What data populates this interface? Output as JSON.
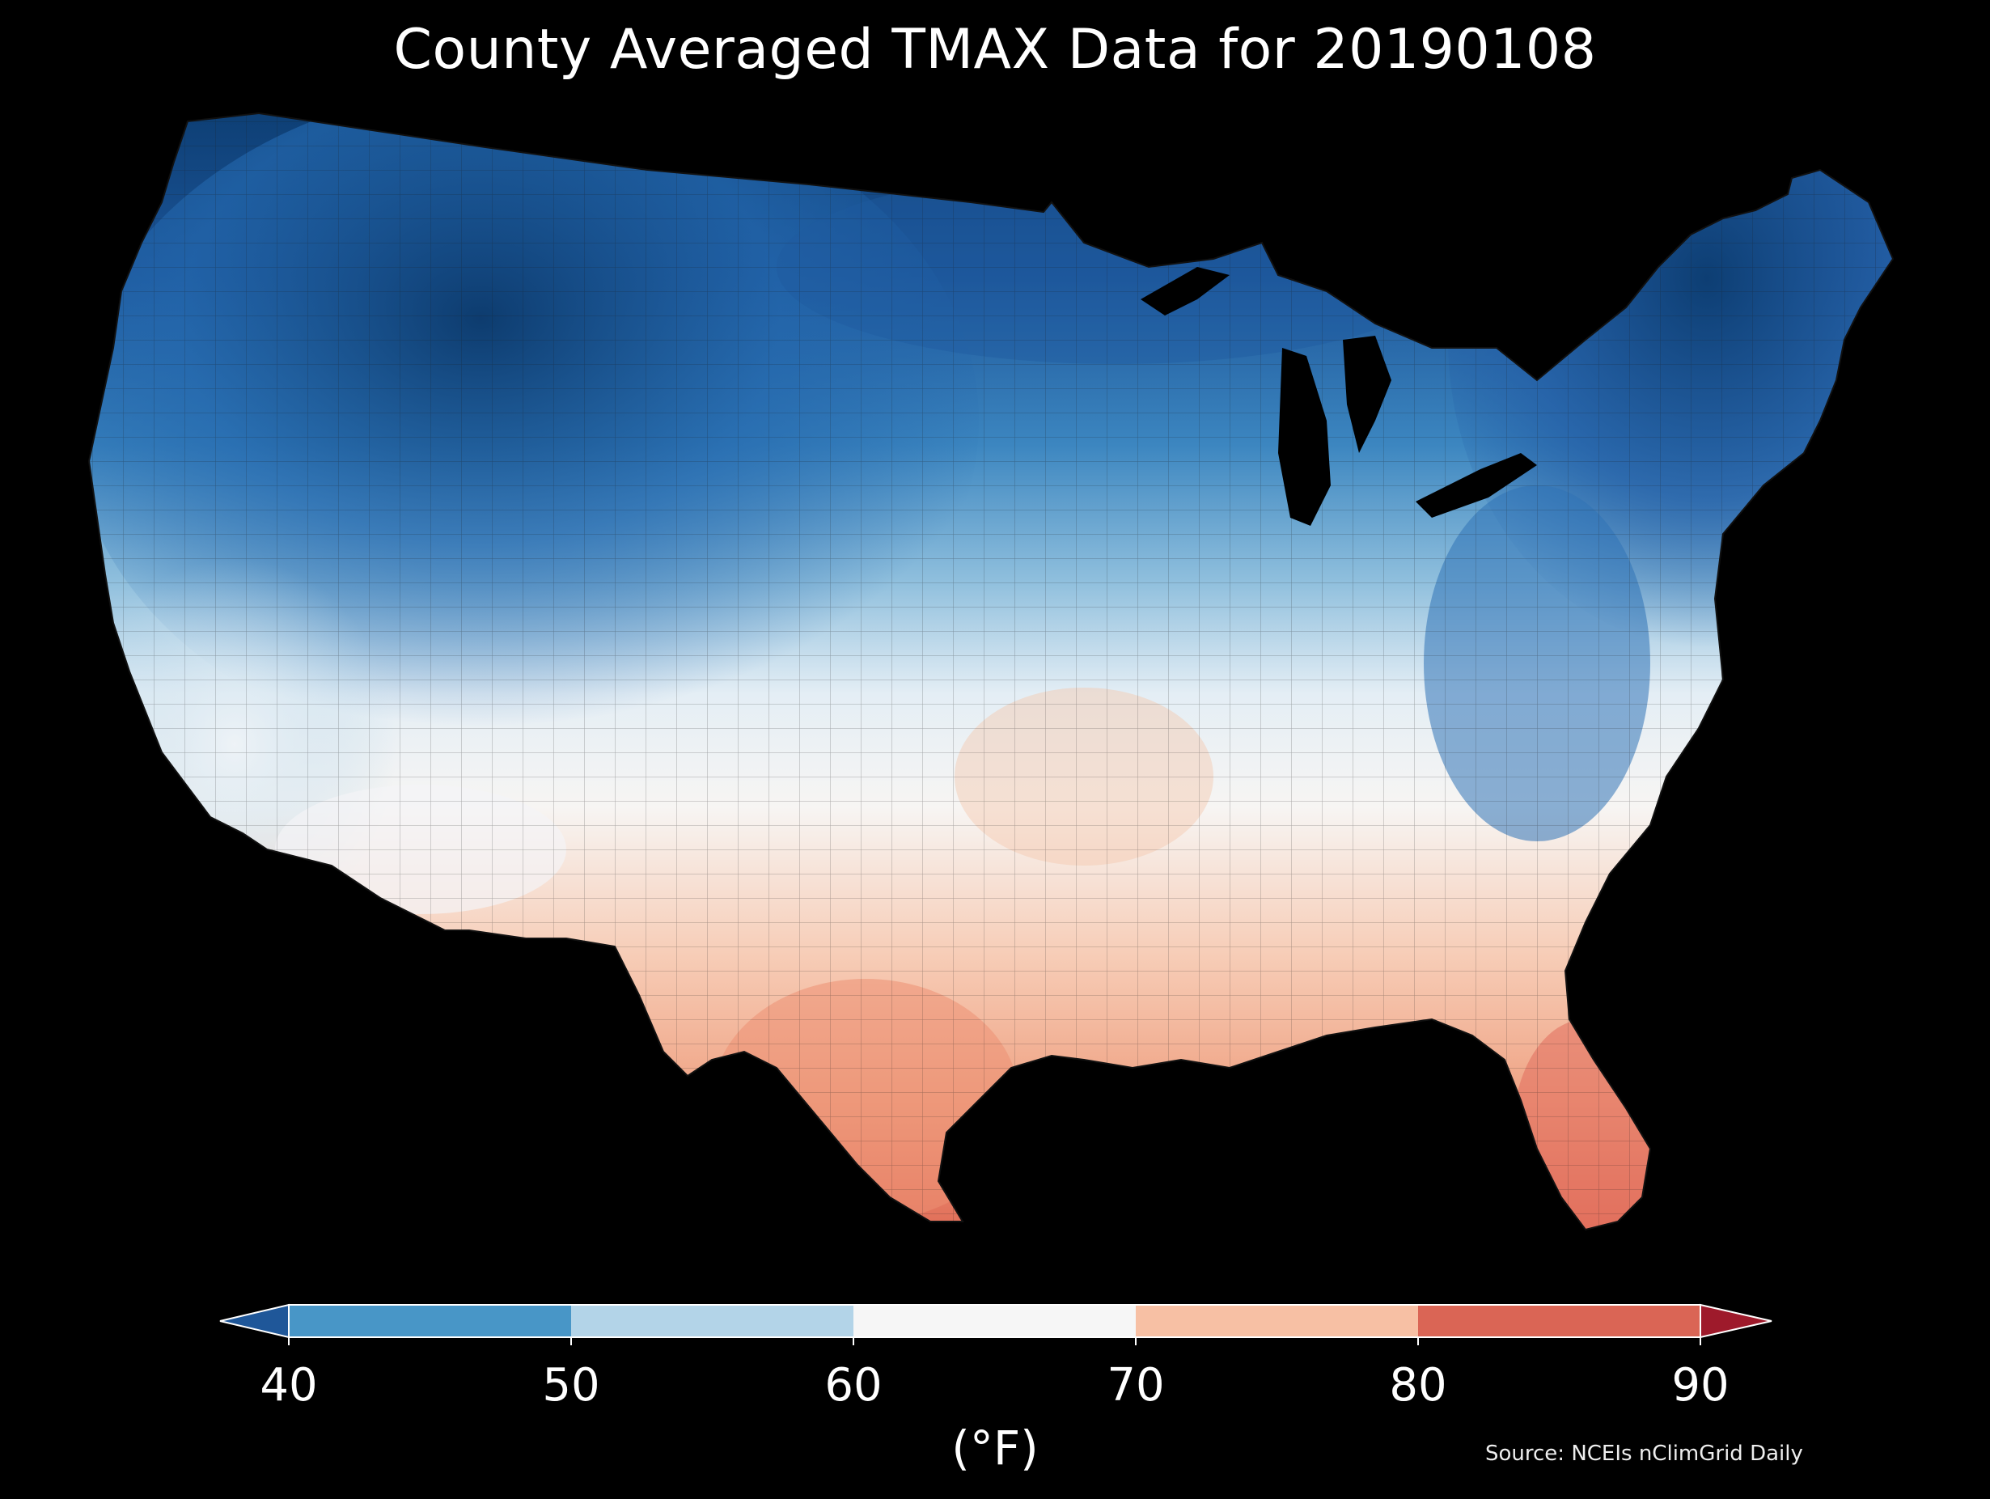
{
  "title": "County Averaged TMAX Data for 20190108",
  "colorbar": {
    "unit_label": "(°F)",
    "ticks": [
      "40",
      "50",
      "60",
      "70",
      "80",
      "90"
    ],
    "bins": [
      {
        "range": "<40",
        "color": "#1f5799"
      },
      {
        "range": "40-50",
        "color": "#4896c7"
      },
      {
        "range": "50-60",
        "color": "#b3d4e8"
      },
      {
        "range": "60-70",
        "color": "#f6f6f6"
      },
      {
        "range": "70-80",
        "color": "#f7c0a4"
      },
      {
        "range": "80-90",
        "color": "#da6555"
      },
      {
        "range": ">90",
        "color": "#9e1a2b"
      }
    ]
  },
  "source": "Source: NCEIs nClimGrid Daily",
  "map": {
    "region": "Contiguous United States",
    "background": "#000000",
    "boundary_color": "#111111"
  }
}
